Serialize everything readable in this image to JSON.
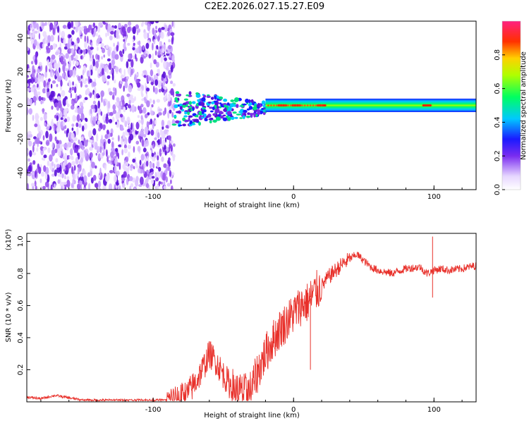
{
  "title": "C2E2.2026.027.15.27.E09",
  "colors": {
    "snr_line": "#e8302a",
    "frame": "#000000"
  },
  "chart_data": [
    {
      "type": "heatmap",
      "name": "spectrogram",
      "xlabel": "Height of straight line (km)",
      "ylabel": "Frequency (Hz)",
      "xlim": [
        -190,
        130
      ],
      "ylim": [
        -50,
        50
      ],
      "xticks": [
        -100,
        0,
        100
      ],
      "xtick_labels": [
        "-100",
        "0",
        "100"
      ],
      "yticks": [
        -40,
        -20,
        0,
        20,
        40
      ],
      "ytick_labels": [
        "-40",
        "-20",
        "0",
        "20",
        "40"
      ],
      "grid": false,
      "colorbar": {
        "label": "Normalized spectral amplitude",
        "range": [
          0,
          1
        ],
        "ticks": [
          0.0,
          0.2,
          0.4,
          0.6,
          0.8
        ],
        "tick_labels": [
          "0.0",
          "0.2",
          "0.4",
          "0.6",
          "0.8"
        ]
      },
      "features": {
        "noise_region_km": [
          -190,
          -85
        ],
        "signal_band_center_hz": 0,
        "signal_band_halfwidth_hz": 4,
        "peak_points_km": [
          -8,
          2,
          20,
          95
        ]
      }
    },
    {
      "type": "line",
      "name": "snr",
      "xlabel": "Height of straight line (km)",
      "ylabel": "SNR (10 * v/v)",
      "multiplier": "(x10⁴)",
      "xlim": [
        -190,
        130
      ],
      "ylim": [
        0,
        1.05
      ],
      "xticks": [
        -100,
        0,
        100
      ],
      "xtick_labels": [
        "-100",
        "0",
        "100"
      ],
      "yticks": [
        0.2,
        0.4,
        0.6,
        0.8,
        1.0
      ],
      "ytick_labels": [
        "0.2",
        "0.4",
        "0.6",
        "0.8",
        "1.0"
      ],
      "grid": false,
      "series": [
        {
          "name": "SNR",
          "x": [
            -190,
            -180,
            -170,
            -150,
            -130,
            -110,
            -90,
            -80,
            -75,
            -70,
            -65,
            -60,
            -55,
            -50,
            -45,
            -40,
            -35,
            -30,
            -25,
            -20,
            -15,
            -10,
            -5,
            0,
            5,
            10,
            15,
            20,
            25,
            30,
            35,
            40,
            45,
            50,
            55,
            60,
            70,
            80,
            90,
            95,
            100,
            105,
            110,
            120,
            130
          ],
          "values": [
            0.03,
            0.02,
            0.04,
            0.01,
            0.01,
            0.01,
            0.01,
            0.03,
            0.06,
            0.12,
            0.2,
            0.3,
            0.25,
            0.17,
            0.1,
            0.06,
            0.05,
            0.08,
            0.2,
            0.3,
            0.38,
            0.45,
            0.5,
            0.55,
            0.6,
            0.62,
            0.68,
            0.72,
            0.78,
            0.82,
            0.86,
            0.89,
            0.92,
            0.88,
            0.84,
            0.82,
            0.8,
            0.83,
            0.84,
            0.8,
            0.82,
            0.83,
            0.82,
            0.83,
            0.85
          ]
        }
      ],
      "spikes": [
        {
          "x": 99,
          "value": 1.03
        },
        {
          "x": 99,
          "value": 0.65
        },
        {
          "x": 12,
          "value": 0.2
        }
      ]
    }
  ]
}
